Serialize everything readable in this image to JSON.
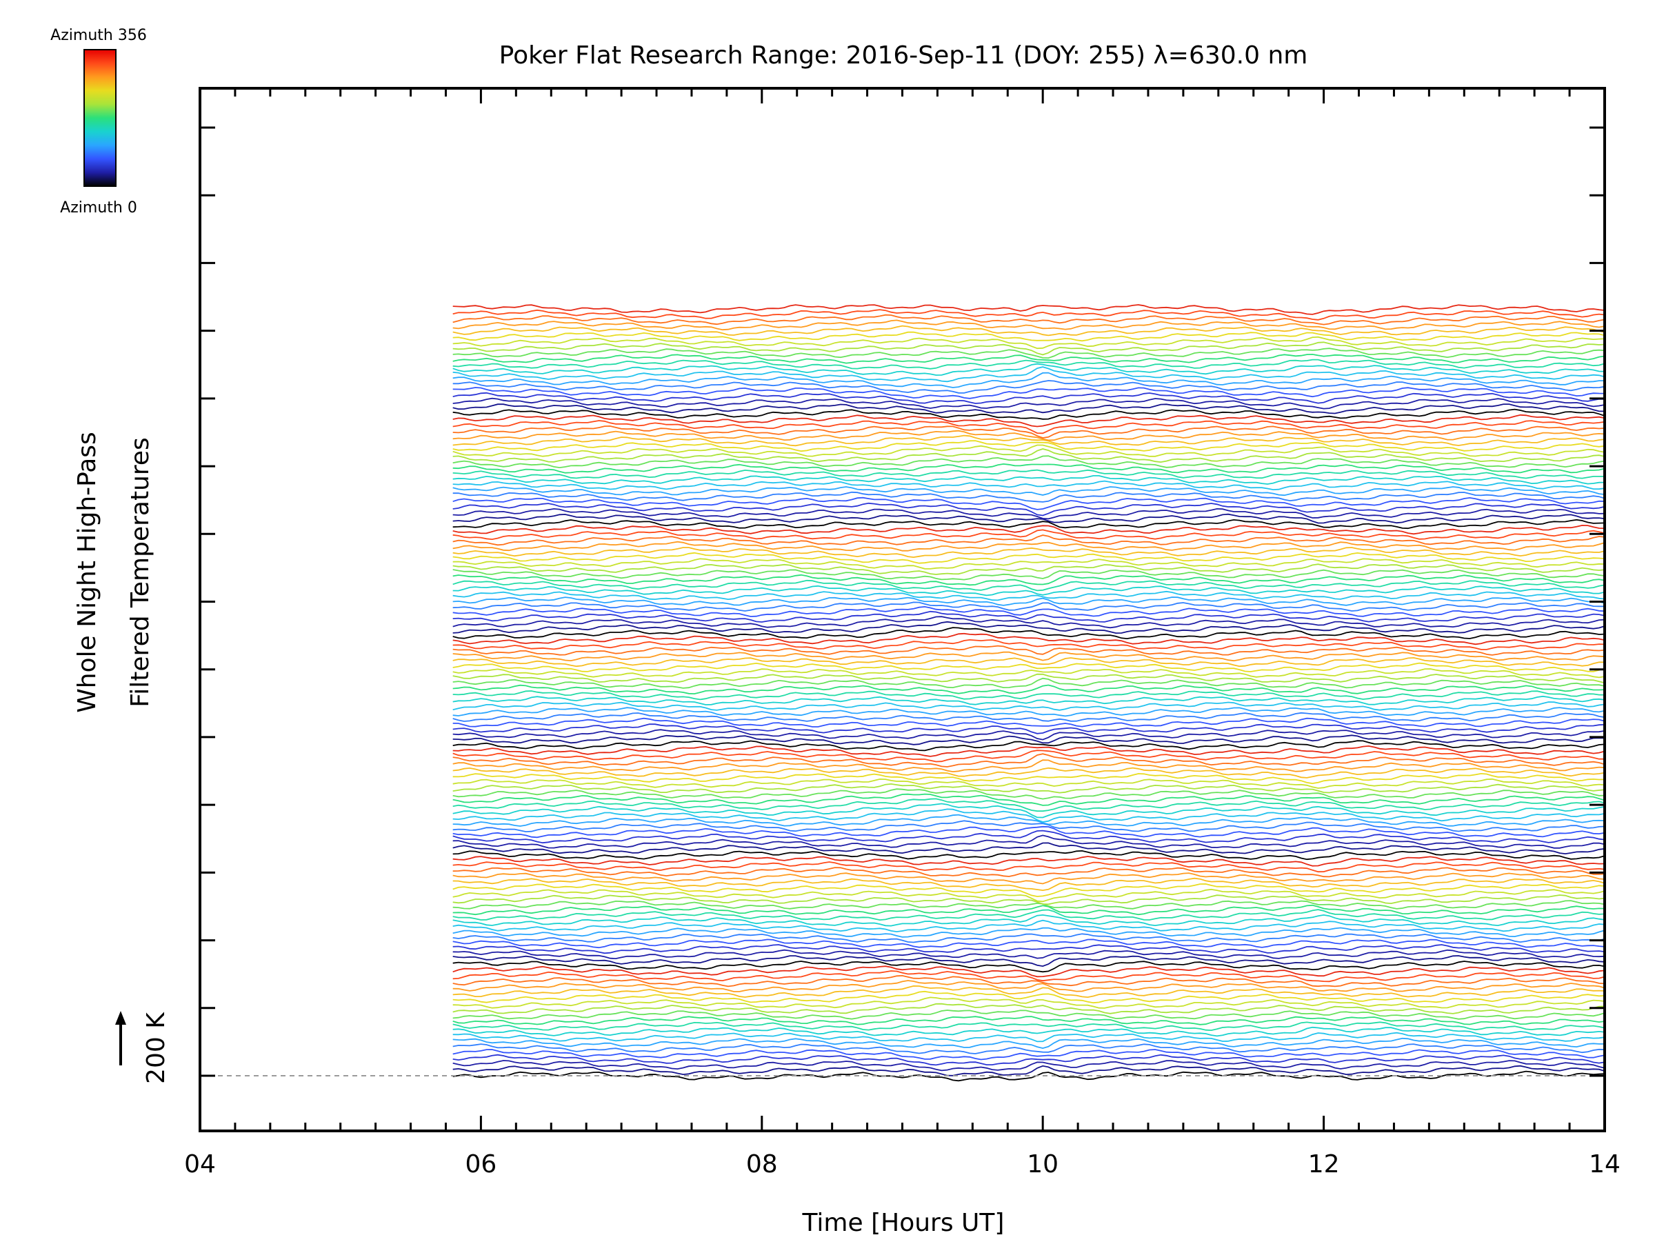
{
  "chart_data": {
    "type": "line",
    "title": "Poker Flat Research Range: 2016-Sep-11 (DOY: 255) λ=630.0 nm",
    "xlabel": "Time [Hours UT]",
    "ylabel_line1": "Whole Night High-Pass",
    "ylabel_line2": "Filtered Temperatures",
    "scale_label": "200 K",
    "xlim": [
      4,
      14
    ],
    "x_ticks": [
      "04",
      "06",
      "08",
      "10",
      "12",
      "14"
    ],
    "x_tick_values": [
      4,
      6,
      8,
      10,
      12,
      14
    ],
    "x_minor_step": 0.25,
    "y_major_tick_count": 15,
    "colorbar": {
      "top_label": "Azimuth  356",
      "bottom_label": "Azimuth  0",
      "colors": [
        "#000000",
        "#1f1ea6",
        "#3355ff",
        "#2aa6ff",
        "#19d2cf",
        "#2be07b",
        "#a8e43a",
        "#e8dc1f",
        "#ff9b1e",
        "#ff4a19",
        "#e60000"
      ]
    },
    "series_count": 140,
    "series_x_start": 5.8,
    "series_x_end": 14.0,
    "baseline": 0,
    "offset_per_series_K": 20,
    "series_colors_cycle": [
      "#000000",
      "#14138c",
      "#1f1ea6",
      "#2b35d6",
      "#3355ff",
      "#2f7fff",
      "#2aa6ff",
      "#22c2ee",
      "#19d2cf",
      "#22dca6",
      "#2be07b",
      "#68e25a",
      "#a8e43a",
      "#c8e22c",
      "#e8dc1f",
      "#f8bc1e",
      "#ff9b1e",
      "#ff7019",
      "#ff4a19",
      "#e62814"
    ]
  }
}
